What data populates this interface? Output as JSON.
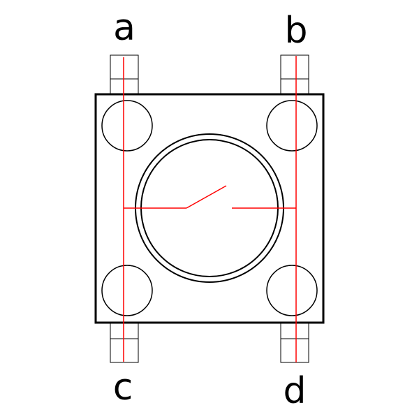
{
  "labels": {
    "a": "a",
    "b": "b",
    "c": "c",
    "d": "d"
  },
  "colors": {
    "outline": "#000000",
    "circuit": "#ff0000",
    "background": "#ffffff"
  }
}
